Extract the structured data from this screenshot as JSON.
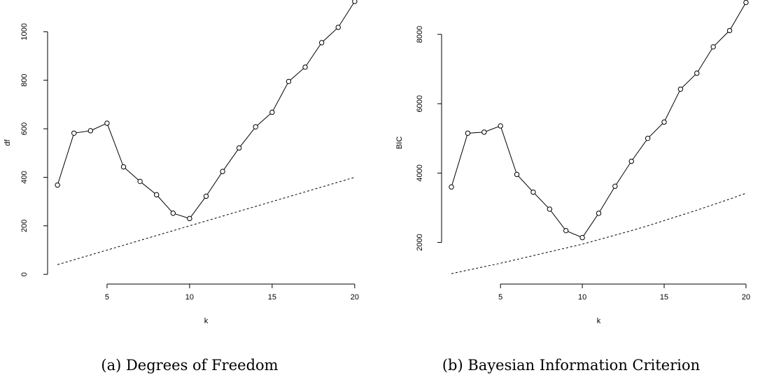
{
  "chart_data": [
    {
      "type": "line",
      "caption": "(a) Degrees of Freedom",
      "xlabel": "k",
      "ylabel": "df",
      "xlim": [
        1.4,
        20.6
      ],
      "ylim": [
        -40,
        1125
      ],
      "xticks": [
        5,
        10,
        15,
        20
      ],
      "yticks": [
        0,
        200,
        400,
        600,
        800,
        1000
      ],
      "grid": false,
      "series": [
        {
          "style": "solid-with-open-circles",
          "x": [
            2,
            3,
            4,
            5,
            6,
            7,
            8,
            9,
            10,
            11,
            12,
            13,
            14,
            15,
            16,
            17,
            18,
            19,
            20
          ],
          "y": [
            368,
            582,
            592,
            623,
            443,
            383,
            328,
            252,
            230,
            322,
            424,
            521,
            608,
            668,
            795,
            854,
            955,
            1018,
            1125
          ]
        },
        {
          "style": "dashed",
          "x": [
            2,
            20
          ],
          "y": [
            40,
            400
          ]
        }
      ]
    },
    {
      "type": "line",
      "caption": "(b) Bayesian Information Criterion",
      "xlabel": "k",
      "ylabel": "BIC",
      "xlim": [
        1.4,
        20.6
      ],
      "ylim": [
        800,
        8950
      ],
      "xticks": [
        5,
        10,
        15,
        20
      ],
      "yticks": [
        2000,
        4000,
        6000,
        8000
      ],
      "grid": false,
      "series": [
        {
          "style": "solid-with-open-circles",
          "x": [
            2,
            3,
            4,
            5,
            6,
            7,
            8,
            9,
            10,
            11,
            12,
            13,
            14,
            15,
            16,
            17,
            18,
            19,
            20
          ],
          "y": [
            3600,
            5150,
            5180,
            5360,
            3960,
            3450,
            2960,
            2340,
            2140,
            2840,
            3620,
            4340,
            5000,
            5470,
            6420,
            6880,
            7640,
            8110,
            8920
          ]
        },
        {
          "style": "dashed",
          "x": [
            2,
            3,
            4,
            5,
            6,
            7,
            8,
            9,
            10,
            11,
            12,
            13,
            14,
            15,
            16,
            17,
            18,
            19,
            20
          ],
          "y": [
            1100,
            1200,
            1300,
            1400,
            1510,
            1620,
            1730,
            1840,
            1950,
            2080,
            2210,
            2340,
            2480,
            2630,
            2780,
            2930,
            3090,
            3250,
            3420
          ]
        }
      ]
    }
  ]
}
